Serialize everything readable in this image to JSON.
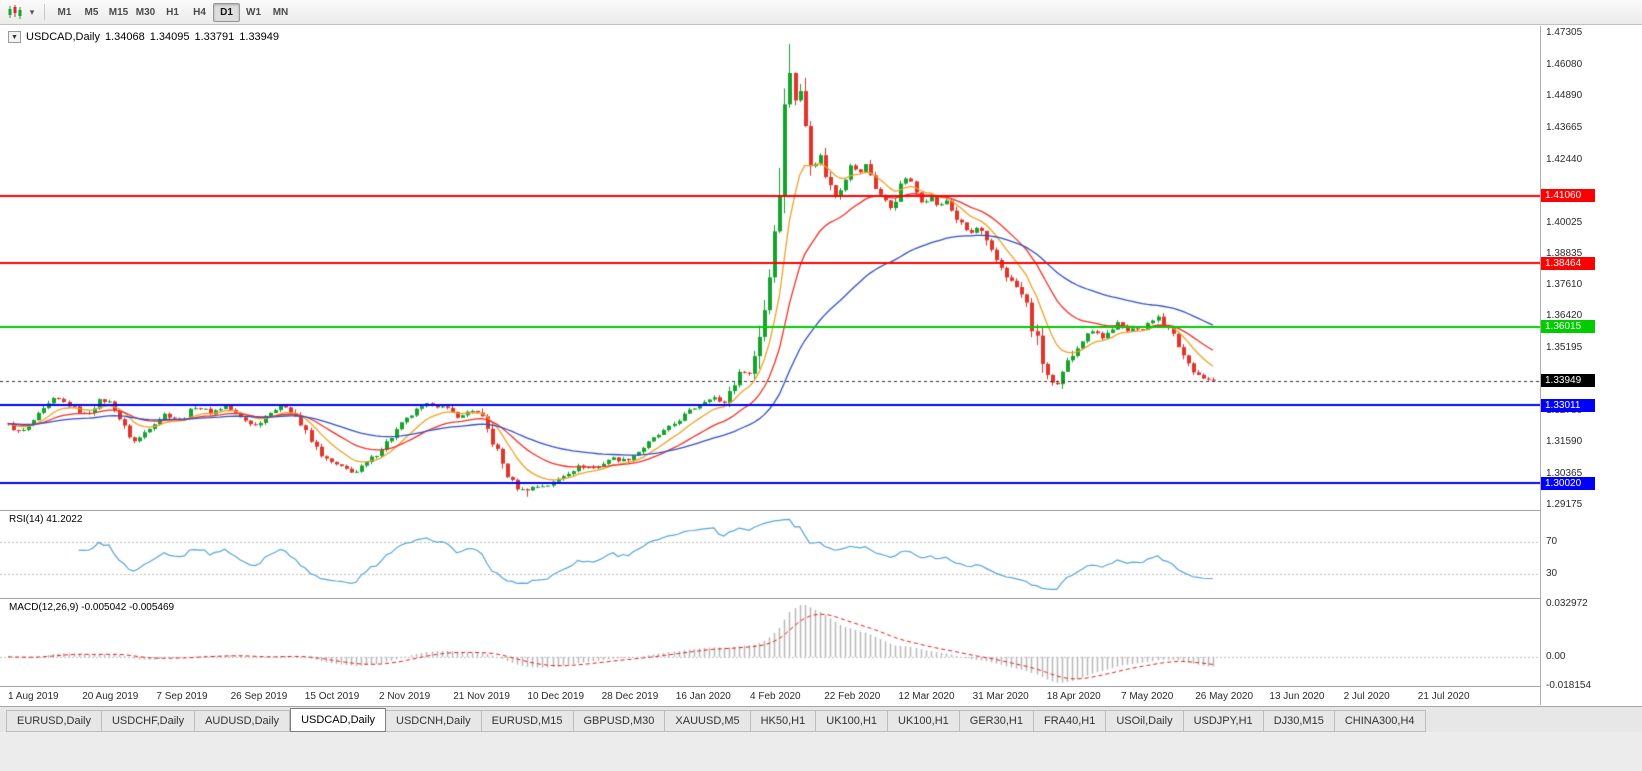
{
  "toolbar": {
    "timeframes": [
      "M1",
      "M5",
      "M15",
      "M30",
      "H1",
      "H4",
      "D1",
      "W1",
      "MN"
    ],
    "active_timeframe": "D1"
  },
  "quote_header": {
    "dropdown_glyph": "▼",
    "symbol": "USDCAD,Daily",
    "open": "1.34068",
    "high": "1.34095",
    "low": "1.33791",
    "close": "1.33949"
  },
  "price_axis": {
    "badges": [
      {
        "label": "1.41060",
        "price": 1.4106,
        "color": "#FF0000"
      },
      {
        "label": "1.38464",
        "price": 1.38464,
        "color": "#FF0000"
      },
      {
        "label": "1.36015",
        "price": 1.36015,
        "color": "#00CC00"
      },
      {
        "label": "1.33949",
        "price": 1.33949,
        "color": "#000000"
      },
      {
        "label": "1.33011",
        "price": 1.33011,
        "color": "#0000FF"
      },
      {
        "label": "1.30020",
        "price": 1.3002,
        "color": "#0000FF"
      }
    ]
  },
  "tabs": {
    "items": [
      "EURUSD,Daily",
      "USDCHF,Daily",
      "AUDUSD,Daily",
      "USDCAD,Daily",
      "USDCNH,Daily",
      "EURUSD,M15",
      "GBPUSD,M30",
      "XAUUSD,M5",
      "HK50,H1",
      "UK100,H1",
      "UK100,H1",
      "GER30,H1",
      "FRA40,H1",
      "USOil,Daily",
      "USDJPY,H1",
      "DJ30,M15",
      "CHINA300,H4"
    ],
    "active_index": 3
  },
  "chart_data": {
    "type": "candlestick",
    "symbol": "USDCAD",
    "timeframe": "Daily",
    "ohlc_current": {
      "open": 1.34068,
      "high": 1.34095,
      "low": 1.33791,
      "close": 1.33949
    },
    "current_price": 1.33949,
    "visible_high": 1.4688,
    "visible_low": 1.2949,
    "candle_count": 240,
    "candle_up_color": "#17A22F",
    "candle_down_color": "#E0352B",
    "y_axis_ticks": [
      1.47305,
      1.4608,
      1.4489,
      1.43665,
      1.4244,
      1.40025,
      1.38835,
      1.3761,
      1.3642,
      1.35195,
      1.3397,
      1.3278,
      1.3159,
      1.30365,
      1.29175
    ],
    "x_axis_labels": [
      "1 Aug 2019",
      "20 Aug 2019",
      "7 Sep 2019",
      "26 Sep 2019",
      "15 Oct 2019",
      "2 Nov 2019",
      "21 Nov 2019",
      "10 Dec 2019",
      "28 Dec 2019",
      "16 Jan 2020",
      "4 Feb 2020",
      "22 Feb 2020",
      "12 Mar 2020",
      "31 Mar 2020",
      "18 Apr 2020",
      "7 May 2020",
      "26 May 2020",
      "13 Jun 2020",
      "2 Jul 2020",
      "21 Jul 2020"
    ],
    "horizontal_lines": [
      {
        "price": 1.4106,
        "color": "#FF0000",
        "width": 2
      },
      {
        "price": 1.38464,
        "color": "#FF0000",
        "width": 2
      },
      {
        "price": 1.36015,
        "color": "#00CC00",
        "width": 2
      },
      {
        "price": 1.33011,
        "color": "#0000FF",
        "width": 2
      },
      {
        "price": 1.3002,
        "color": "#0000FF",
        "width": 2
      }
    ],
    "current_price_line": {
      "color": "#333333",
      "style": "dashed"
    },
    "moving_averages": [
      {
        "name": "fast-ma",
        "period": 9,
        "color": "#F0A028"
      },
      {
        "name": "medium-ma",
        "period": 21,
        "color": "#F03228"
      },
      {
        "name": "slow-ma",
        "period": 50,
        "color": "#3350C4"
      }
    ],
    "price_path": [
      [
        8,
        1.3225
      ],
      [
        20,
        1.3192
      ],
      [
        40,
        1.3268
      ],
      [
        55,
        1.3328
      ],
      [
        70,
        1.3298
      ],
      [
        85,
        1.3262
      ],
      [
        100,
        1.3322
      ],
      [
        112,
        1.3308
      ],
      [
        125,
        1.3202
      ],
      [
        135,
        1.3158
      ],
      [
        150,
        1.3222
      ],
      [
        165,
        1.3268
      ],
      [
        180,
        1.3242
      ],
      [
        195,
        1.3298
      ],
      [
        210,
        1.3272
      ],
      [
        225,
        1.3298
      ],
      [
        240,
        1.3252
      ],
      [
        255,
        1.3222
      ],
      [
        270,
        1.3278
      ],
      [
        285,
        1.3298
      ],
      [
        295,
        1.3262
      ],
      [
        310,
        1.3162
      ],
      [
        325,
        1.3092
      ],
      [
        340,
        1.3062
      ],
      [
        355,
        1.3042
      ],
      [
        370,
        1.3092
      ],
      [
        385,
        1.3152
      ],
      [
        400,
        1.3222
      ],
      [
        415,
        1.3278
      ],
      [
        430,
        1.3308
      ],
      [
        445,
        1.3288
      ],
      [
        460,
        1.3252
      ],
      [
        470,
        1.3288
      ],
      [
        480,
        1.3258
      ],
      [
        490,
        1.3182
      ],
      [
        500,
        1.3092
      ],
      [
        510,
        1.3012
      ],
      [
        520,
        1.2972
      ],
      [
        535,
        1.2988
      ],
      [
        550,
        1.2996
      ],
      [
        565,
        1.3038
      ],
      [
        580,
        1.3068
      ],
      [
        595,
        1.3058
      ],
      [
        610,
        1.3098
      ],
      [
        625,
        1.3088
      ],
      [
        640,
        1.3128
      ],
      [
        655,
        1.3178
      ],
      [
        670,
        1.3218
      ],
      [
        685,
        1.3268
      ],
      [
        700,
        1.3308
      ],
      [
        712,
        1.3338
      ],
      [
        722,
        1.3298
      ],
      [
        732,
        1.3378
      ],
      [
        742,
        1.3438
      ],
      [
        750,
        1.3418
      ],
      [
        758,
        1.3558
      ],
      [
        766,
        1.3718
      ],
      [
        772,
        1.3898
      ],
      [
        778,
        1.4148
      ],
      [
        784,
        1.4398
      ],
      [
        788,
        1.4618
      ],
      [
        794,
        1.4478
      ],
      [
        800,
        1.4498
      ],
      [
        806,
        1.4348
      ],
      [
        812,
        1.4198
      ],
      [
        818,
        1.4278
      ],
      [
        826,
        1.4178
      ],
      [
        834,
        1.4098
      ],
      [
        842,
        1.4158
      ],
      [
        850,
        1.4228
      ],
      [
        858,
        1.4188
      ],
      [
        866,
        1.4228
      ],
      [
        874,
        1.4148
      ],
      [
        882,
        1.4098
      ],
      [
        890,
        1.4058
      ],
      [
        898,
        1.4118
      ],
      [
        906,
        1.4178
      ],
      [
        914,
        1.4128
      ],
      [
        922,
        1.4078
      ],
      [
        930,
        1.4108
      ],
      [
        938,
        1.4058
      ],
      [
        946,
        1.4088
      ],
      [
        954,
        1.4028
      ],
      [
        962,
        1.3988
      ],
      [
        970,
        1.3958
      ],
      [
        978,
        1.3988
      ],
      [
        986,
        1.3918
      ],
      [
        994,
        1.3868
      ],
      [
        1002,
        1.3828
      ],
      [
        1010,
        1.3778
      ],
      [
        1018,
        1.3748
      ],
      [
        1026,
        1.3688
      ],
      [
        1032,
        1.3598
      ],
      [
        1038,
        1.3518
      ],
      [
        1044,
        1.3438
      ],
      [
        1050,
        1.3388
      ],
      [
        1056,
        1.3368
      ],
      [
        1062,
        1.3418
      ],
      [
        1070,
        1.3488
      ],
      [
        1078,
        1.3538
      ],
      [
        1086,
        1.3568
      ],
      [
        1094,
        1.3598
      ],
      [
        1102,
        1.3558
      ],
      [
        1110,
        1.3588
      ],
      [
        1118,
        1.3618
      ],
      [
        1126,
        1.3578
      ],
      [
        1134,
        1.3608
      ],
      [
        1142,
        1.3588
      ],
      [
        1150,
        1.3618
      ],
      [
        1158,
        1.3648
      ],
      [
        1166,
        1.3598
      ],
      [
        1174,
        1.3558
      ],
      [
        1182,
        1.3498
      ],
      [
        1190,
        1.3448
      ],
      [
        1198,
        1.3418
      ],
      [
        1206,
        1.3398
      ],
      [
        1213,
        1.3395
      ]
    ],
    "indicators": {
      "rsi": {
        "label": "RSI(14) 41.2022",
        "period": 14,
        "current": 41.2022,
        "levels": [
          "70",
          "30"
        ],
        "color": "#58A6DA"
      },
      "macd": {
        "label": "MACD(12,26,9) -0.005042 -0.005469",
        "fast": 12,
        "slow": 26,
        "signal": 9,
        "current_macd": -0.005042,
        "current_signal": -0.005469,
        "axis_labels": [
          "0.032972",
          "0.00",
          "-0.018154"
        ],
        "scale_max": 0.032972,
        "scale_min": -0.018154,
        "bar_color": "#B8B8B8",
        "signal_color": "#E02020"
      }
    }
  }
}
